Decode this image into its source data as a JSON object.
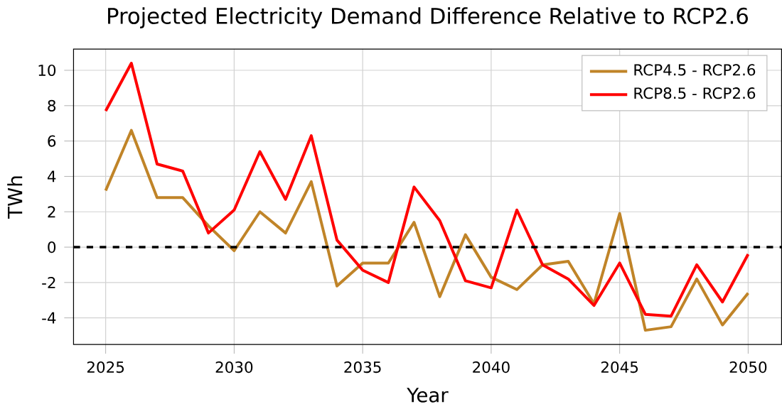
{
  "chart_data": {
    "type": "line",
    "title": "Projected Electricity Demand Difference Relative to RCP2.6",
    "xlabel": "Year",
    "ylabel": "TWh",
    "x": [
      2025,
      2026,
      2027,
      2028,
      2029,
      2030,
      2031,
      2032,
      2033,
      2034,
      2035,
      2036,
      2037,
      2038,
      2039,
      2040,
      2041,
      2042,
      2043,
      2044,
      2045,
      2046,
      2047,
      2048,
      2049,
      2050
    ],
    "series": [
      {
        "name": "RCP4.5 - RCP2.6",
        "color": "#c08428",
        "values": [
          3.2,
          6.6,
          2.8,
          2.8,
          1.2,
          -0.2,
          2.0,
          0.8,
          3.7,
          -2.2,
          -0.9,
          -0.9,
          1.4,
          -2.8,
          0.7,
          -1.7,
          -2.4,
          -1.0,
          -0.8,
          -3.2,
          1.9,
          -4.7,
          -4.5,
          -1.8,
          -4.4,
          -2.6
        ]
      },
      {
        "name": "RCP8.5 - RCP2.6",
        "color": "#ff0000",
        "values": [
          7.7,
          10.4,
          4.7,
          4.3,
          0.8,
          2.1,
          5.4,
          2.7,
          6.3,
          0.4,
          -1.3,
          -2.0,
          3.4,
          1.5,
          -1.9,
          -2.3,
          2.1,
          -1.0,
          -1.8,
          -3.3,
          -0.9,
          -3.8,
          -3.9,
          -1.0,
          -3.1,
          -0.4
        ]
      }
    ],
    "xlim": [
      2023.75,
      2051.3
    ],
    "ylim": [
      -5.5,
      11.2
    ],
    "xticks": [
      2025,
      2030,
      2035,
      2040,
      2045,
      2050
    ],
    "yticks": [
      -4,
      -2,
      0,
      2,
      4,
      6,
      8,
      10
    ],
    "ref_lines": [
      {
        "axis": "y",
        "value": 0,
        "color": "#000000",
        "line_style": "dashed"
      }
    ],
    "grid": true,
    "legend": "top right",
    "marker": "none",
    "line_style": "solid"
  }
}
